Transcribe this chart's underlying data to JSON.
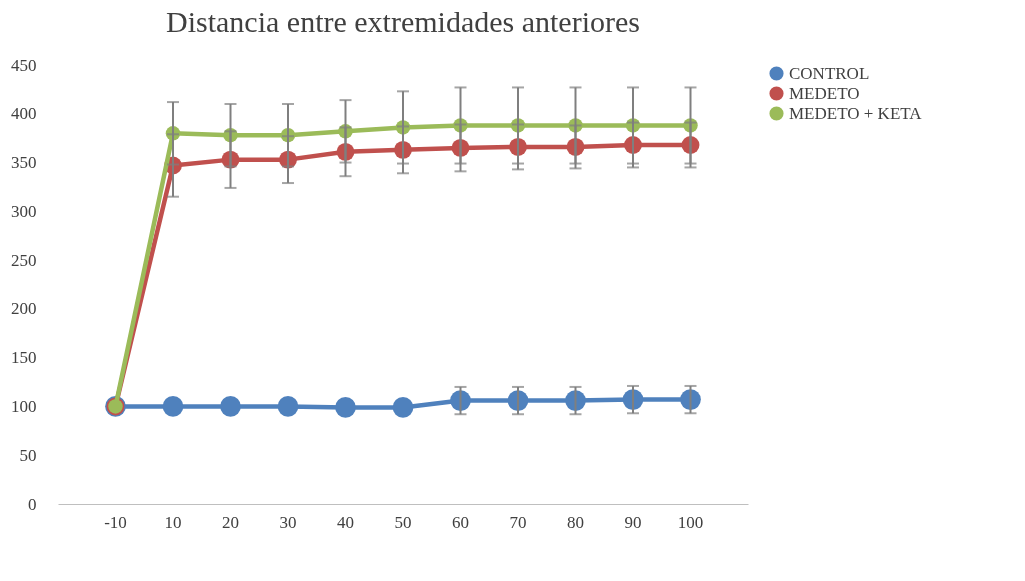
{
  "chart_data": {
    "type": "line",
    "title": "Distancia entre extremidades anteriores",
    "categories": [
      "-10",
      "10",
      "20",
      "30",
      "40",
      "50",
      "60",
      "70",
      "80",
      "90",
      "100"
    ],
    "series": [
      {
        "name": "CONTROL",
        "color": "#4f81bd",
        "values": [
          100,
          100,
          100,
          100,
          99,
          99,
          106,
          106,
          106,
          107,
          107
        ],
        "errors": [
          null,
          null,
          null,
          null,
          null,
          null,
          14,
          14,
          14,
          14,
          14
        ]
      },
      {
        "name": "MEDETO",
        "color": "#c0504d",
        "values": [
          100,
          347,
          353,
          353,
          361,
          363,
          365,
          366,
          366,
          368,
          368
        ],
        "errors": [
          null,
          32,
          29,
          24,
          25,
          24,
          24,
          23,
          22,
          23,
          23
        ]
      },
      {
        "name": "MEDETO + KETA",
        "color": "#9bbb59",
        "values": [
          100,
          380,
          378,
          378,
          382,
          386,
          388,
          388,
          388,
          388,
          388
        ],
        "errors": [
          null,
          32,
          32,
          32,
          32,
          37,
          39,
          39,
          39,
          39,
          39
        ]
      }
    ],
    "ylim": [
      0,
      450
    ],
    "yticks": [
      0,
      50,
      100,
      150,
      200,
      250,
      300,
      350,
      400,
      450
    ],
    "legend": "right",
    "marker": "circle",
    "line_style": "solid"
  }
}
